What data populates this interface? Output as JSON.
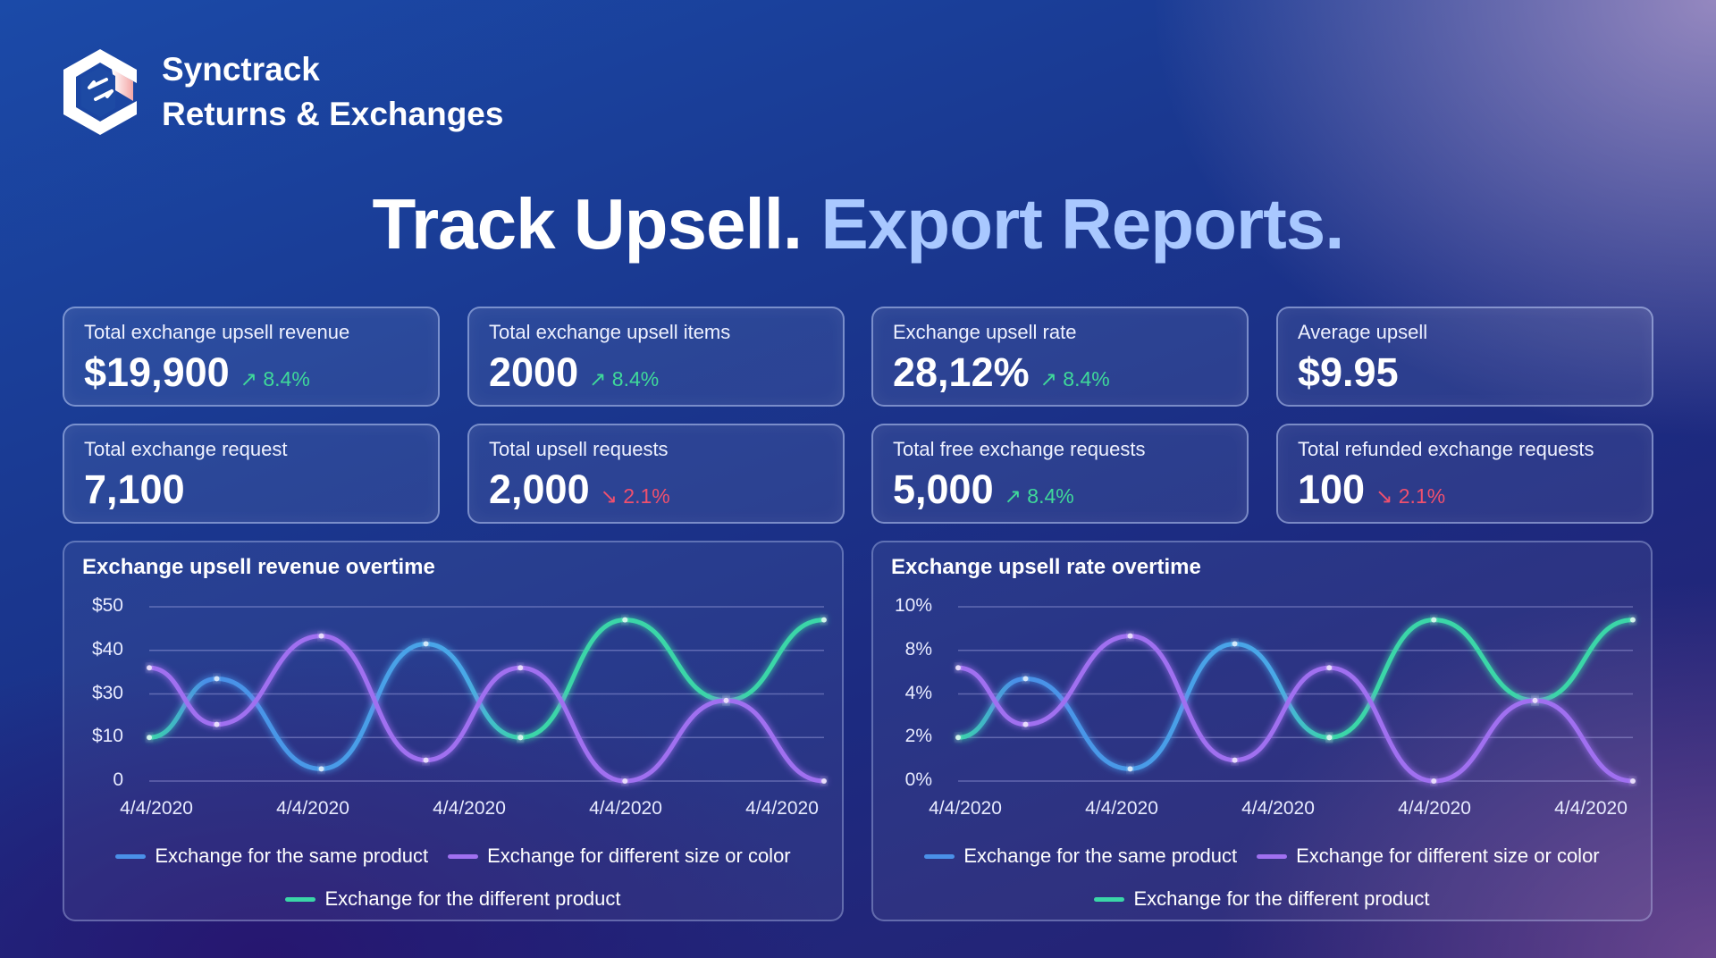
{
  "brand": {
    "name": "Synctrack",
    "product": "Returns & Exchanges"
  },
  "headline": {
    "part1": "Track Upsell.",
    "part2": "Export Reports."
  },
  "colors": {
    "up": "#3fd99a",
    "down": "#f0506e",
    "blue": "#4a90e8",
    "purple": "#a070f0",
    "teal": "#3ad6a8"
  },
  "cards": [
    {
      "label": "Total exchange upsell revenue",
      "value": "$19,900",
      "delta": "8.4%",
      "trend": "up"
    },
    {
      "label": "Total exchange upsell items",
      "value": "2000",
      "delta": "8.4%",
      "trend": "up"
    },
    {
      "label": "Exchange upsell rate",
      "value": "28,12%",
      "delta": "8.4%",
      "trend": "up"
    },
    {
      "label": "Average upsell",
      "value": "$9.95",
      "delta": "",
      "trend": ""
    },
    {
      "label": "Total exchange request",
      "value": "7,100",
      "delta": "",
      "trend": ""
    },
    {
      "label": "Total upsell requests",
      "value": "2,000",
      "delta": "2.1%",
      "trend": "down"
    },
    {
      "label": "Total free exchange requests",
      "value": "5,000",
      "delta": "8.4%",
      "trend": "up"
    },
    {
      "label": "Total refunded exchange requests",
      "value": "100",
      "delta": "2.1%",
      "trend": "down"
    }
  ],
  "chart_data": [
    {
      "type": "line",
      "title": "Exchange upsell revenue overtime",
      "y_ticks": [
        "$50",
        "$40",
        "$30",
        "$10",
        "0"
      ],
      "x_ticks": [
        "4/4/2020",
        "4/4/2020",
        "4/4/2020",
        "4/4/2020",
        "4/4/2020"
      ],
      "x": [
        0,
        0.1,
        0.255,
        0.41,
        0.55,
        0.705,
        0.855,
        1.0
      ],
      "y_scale": "tick index (0 = bottom tick, 4 = top tick)",
      "series": [
        {
          "name": "Exchange for the same product",
          "color": "#4a90e8",
          "values": [
            1.0,
            2.35,
            0.28,
            3.15,
            1.0,
            null,
            null,
            null
          ]
        },
        {
          "name": "Exchange for different size or color",
          "color": "#a070f0",
          "values": [
            2.6,
            1.3,
            3.33,
            0.48,
            2.6,
            0,
            1.85,
            0
          ]
        },
        {
          "name": "Exchange for the different product",
          "color": "#3ad6a8",
          "values": [
            null,
            null,
            null,
            null,
            1.0,
            3.7,
            1.85,
            3.7
          ]
        }
      ],
      "legend": "bottom",
      "grid": true
    },
    {
      "type": "line",
      "title": "Exchange upsell rate overtime",
      "y_ticks": [
        "10%",
        "8%",
        "4%",
        "2%",
        "0%"
      ],
      "x_ticks": [
        "4/4/2020",
        "4/4/2020",
        "4/4/2020",
        "4/4/2020",
        "4/4/2020"
      ],
      "x": [
        0,
        0.1,
        0.255,
        0.41,
        0.55,
        0.705,
        0.855,
        1.0
      ],
      "y_scale": "tick index (0 = bottom tick, 4 = top tick)",
      "series": [
        {
          "name": "Exchange for the same product",
          "color": "#4a90e8",
          "values": [
            1.0,
            2.35,
            0.28,
            3.15,
            1.0,
            null,
            null,
            null
          ]
        },
        {
          "name": "Exchange for different size or color",
          "color": "#a070f0",
          "values": [
            2.6,
            1.3,
            3.33,
            0.48,
            2.6,
            0,
            1.85,
            0
          ]
        },
        {
          "name": "Exchange for the different product",
          "color": "#3ad6a8",
          "values": [
            null,
            null,
            null,
            null,
            1.0,
            3.7,
            1.85,
            3.7
          ]
        }
      ],
      "legend": "bottom",
      "grid": true
    }
  ]
}
